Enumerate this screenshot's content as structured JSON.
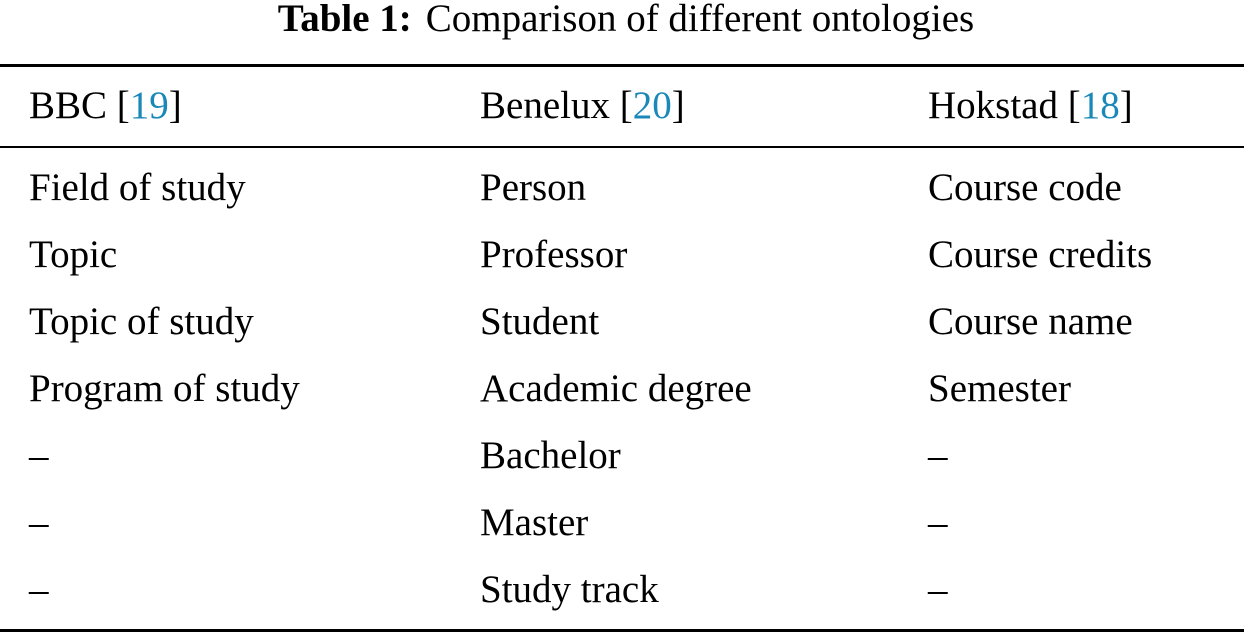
{
  "caption": {
    "label": "Table 1:",
    "text": "Comparison of different ontologies"
  },
  "table": {
    "headers": [
      {
        "name": "BBC",
        "citation": "19"
      },
      {
        "name": "Benelux",
        "citation": "20"
      },
      {
        "name": "Hokstad",
        "citation": "18"
      }
    ],
    "rows": [
      [
        "Field of study",
        "Person",
        "Course code"
      ],
      [
        "Topic",
        "Professor",
        "Course credits"
      ],
      [
        "Topic of study",
        "Student",
        "Course name"
      ],
      [
        "Program of study",
        "Academic degree",
        "Semester"
      ],
      [
        "–",
        "Bachelor",
        "–"
      ],
      [
        "–",
        "Master",
        "–"
      ],
      [
        "–",
        "Study track",
        "–"
      ]
    ]
  },
  "colors": {
    "citation": "#1a88b9",
    "text": "#000000",
    "rule": "#000000"
  }
}
